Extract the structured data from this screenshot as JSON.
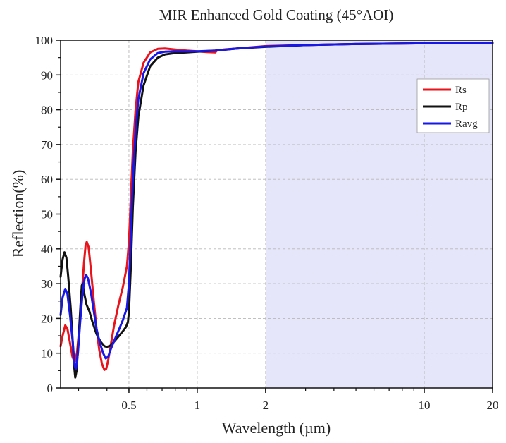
{
  "chart_data": {
    "type": "line",
    "title": "MIR Enhanced Gold Coating (45°AOI)",
    "xlabel": "Wavelength (µm)",
    "ylabel": "Reflection(%)",
    "x_scale": "log",
    "xlim": [
      0.25,
      20
    ],
    "ylim": [
      0,
      100
    ],
    "x_ticks": [
      0.5,
      1,
      2,
      10,
      20
    ],
    "x_tick_labels": [
      "0.5",
      "1",
      "2",
      "10",
      "20"
    ],
    "y_ticks": [
      0,
      10,
      20,
      30,
      40,
      50,
      60,
      70,
      80,
      90,
      100
    ],
    "y_tick_labels": [
      "0",
      "10",
      "20",
      "30",
      "40",
      "50",
      "60",
      "70",
      "80",
      "90",
      "100"
    ],
    "grid": true,
    "legend_position": "top-right",
    "shaded_region": {
      "x_range": [
        2,
        20
      ],
      "color": "#e6e6fa"
    },
    "series": [
      {
        "name": "Rs",
        "color": "#e8131b",
        "points": [
          [
            0.25,
            12
          ],
          [
            0.255,
            15
          ],
          [
            0.262,
            18
          ],
          [
            0.268,
            17
          ],
          [
            0.275,
            13
          ],
          [
            0.282,
            9
          ],
          [
            0.288,
            7.5
          ],
          [
            0.295,
            10
          ],
          [
            0.303,
            18
          ],
          [
            0.31,
            27
          ],
          [
            0.317,
            36
          ],
          [
            0.322,
            41
          ],
          [
            0.326,
            42
          ],
          [
            0.332,
            40.5
          ],
          [
            0.34,
            34
          ],
          [
            0.35,
            25
          ],
          [
            0.36,
            17
          ],
          [
            0.37,
            11
          ],
          [
            0.38,
            7
          ],
          [
            0.39,
            5.2
          ],
          [
            0.397,
            5.5
          ],
          [
            0.405,
            8
          ],
          [
            0.415,
            12
          ],
          [
            0.43,
            18
          ],
          [
            0.45,
            24
          ],
          [
            0.47,
            29
          ],
          [
            0.49,
            35
          ],
          [
            0.5,
            42
          ],
          [
            0.51,
            55
          ],
          [
            0.52,
            68
          ],
          [
            0.535,
            80
          ],
          [
            0.55,
            88
          ],
          [
            0.58,
            93.5
          ],
          [
            0.62,
            96.5
          ],
          [
            0.67,
            97.5
          ],
          [
            0.72,
            97.6
          ],
          [
            0.8,
            97.3
          ],
          [
            0.9,
            97
          ],
          [
            1,
            96.8
          ],
          [
            1.1,
            96.6
          ],
          [
            1.2,
            96.5
          ],
          [
            1.22,
            97
          ],
          [
            1.3,
            97.3
          ],
          [
            1.5,
            97.6
          ],
          [
            2,
            98.3
          ],
          [
            3,
            98.6
          ],
          [
            5,
            98.9
          ],
          [
            10,
            99.1
          ],
          [
            20,
            99.2
          ]
        ]
      },
      {
        "name": "Rp",
        "color": "#111111",
        "points": [
          [
            0.25,
            32
          ],
          [
            0.255,
            37
          ],
          [
            0.26,
            39
          ],
          [
            0.265,
            37.5
          ],
          [
            0.27,
            32
          ],
          [
            0.277,
            23
          ],
          [
            0.283,
            13
          ],
          [
            0.287,
            6
          ],
          [
            0.29,
            3
          ],
          [
            0.294,
            5
          ],
          [
            0.3,
            14
          ],
          [
            0.306,
            24
          ],
          [
            0.31,
            29.5
          ],
          [
            0.313,
            30
          ],
          [
            0.318,
            27
          ],
          [
            0.325,
            24
          ],
          [
            0.335,
            22
          ],
          [
            0.345,
            19
          ],
          [
            0.36,
            15.5
          ],
          [
            0.375,
            13.3
          ],
          [
            0.39,
            12
          ],
          [
            0.4,
            11.8
          ],
          [
            0.415,
            12.2
          ],
          [
            0.43,
            13.3
          ],
          [
            0.45,
            14.8
          ],
          [
            0.47,
            16.3
          ],
          [
            0.485,
            17.5
          ],
          [
            0.495,
            19
          ],
          [
            0.5,
            22
          ],
          [
            0.51,
            35
          ],
          [
            0.52,
            52
          ],
          [
            0.535,
            68
          ],
          [
            0.55,
            78
          ],
          [
            0.58,
            87
          ],
          [
            0.62,
            92.5
          ],
          [
            0.67,
            95
          ],
          [
            0.72,
            95.9
          ],
          [
            0.8,
            96.3
          ],
          [
            0.9,
            96.5
          ],
          [
            1,
            96.7
          ],
          [
            1.2,
            97
          ],
          [
            1.5,
            97.6
          ],
          [
            2,
            98.1
          ],
          [
            3,
            98.6
          ],
          [
            5,
            98.9
          ],
          [
            10,
            99.1
          ],
          [
            20,
            99.2
          ]
        ]
      },
      {
        "name": "Ravg",
        "color": "#1717e8",
        "points": [
          [
            0.25,
            21
          ],
          [
            0.255,
            26
          ],
          [
            0.262,
            28.5
          ],
          [
            0.268,
            27
          ],
          [
            0.275,
            21
          ],
          [
            0.283,
            13
          ],
          [
            0.288,
            6.5
          ],
          [
            0.292,
            5.5
          ],
          [
            0.298,
            10
          ],
          [
            0.305,
            19
          ],
          [
            0.312,
            27
          ],
          [
            0.319,
            31.5
          ],
          [
            0.324,
            32.5
          ],
          [
            0.33,
            31.5
          ],
          [
            0.34,
            27.5
          ],
          [
            0.35,
            22
          ],
          [
            0.36,
            17
          ],
          [
            0.372,
            13
          ],
          [
            0.385,
            10
          ],
          [
            0.395,
            8.5
          ],
          [
            0.405,
            9
          ],
          [
            0.415,
            11
          ],
          [
            0.43,
            13.5
          ],
          [
            0.45,
            16.5
          ],
          [
            0.47,
            19.5
          ],
          [
            0.49,
            23
          ],
          [
            0.5,
            30
          ],
          [
            0.51,
            45
          ],
          [
            0.52,
            60
          ],
          [
            0.535,
            74
          ],
          [
            0.55,
            83
          ],
          [
            0.58,
            90.5
          ],
          [
            0.62,
            94.5
          ],
          [
            0.67,
            96.3
          ],
          [
            0.72,
            96.7
          ],
          [
            0.8,
            96.8
          ],
          [
            0.9,
            96.8
          ],
          [
            1,
            96.8
          ],
          [
            1.2,
            97
          ],
          [
            1.5,
            97.6
          ],
          [
            2,
            98.2
          ],
          [
            3,
            98.6
          ],
          [
            5,
            98.9
          ],
          [
            10,
            99.1
          ],
          [
            20,
            99.2
          ]
        ]
      }
    ]
  }
}
